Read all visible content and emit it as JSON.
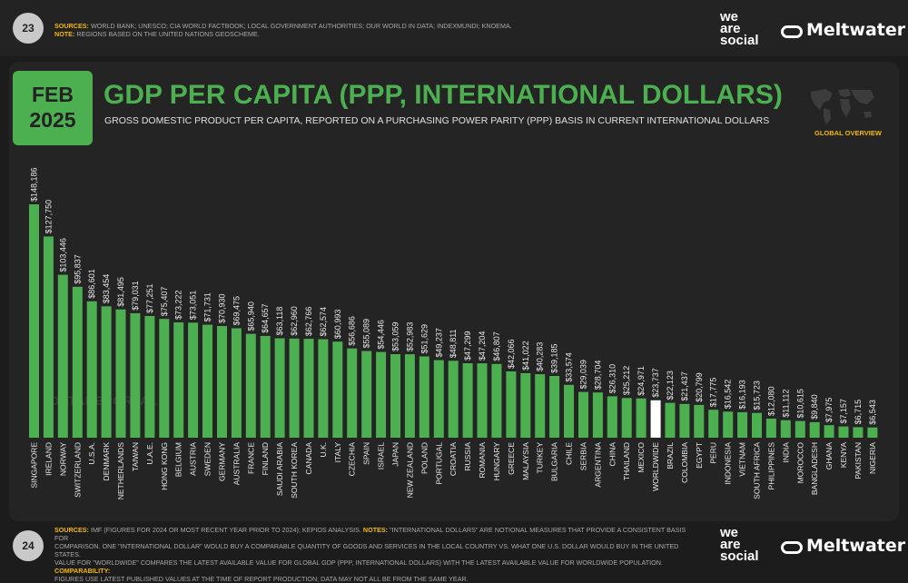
{
  "header": {
    "page_number": "23",
    "sources_label": "SOURCES:",
    "sources_text": "WORLD BANK; UNESCO; CIA WORLD FACTBOOK; LOCAL GOVERNMENT AUTHORITIES; OUR WORLD IN DATA; INDEXMUNDI; KNOEMA.",
    "note_label": "NOTE:",
    "note_text": "REGIONS BASED ON THE UNITED NATIONS GEOSCHEME.",
    "brand_line1": "we",
    "brand_line2": "are",
    "brand_line3": "social",
    "partner": "Meltwater"
  },
  "slide": {
    "date_month": "FEB",
    "date_year": "2025",
    "title": "GDP PER CAPITA (PPP, INTERNATIONAL DOLLARS)",
    "subtitle": "GROSS DOMESTIC PRODUCT PER CAPITA, REPORTED ON A PURCHASING POWER PARITY (PPP) BASIS IN CURRENT INTERNATIONAL DOLLARS",
    "badge": "GLOBAL OVERVIEW",
    "watermark": "DATAREPORTAL"
  },
  "footer": {
    "page_number": "24",
    "sources_label": "SOURCES:",
    "sources_text": "IMF (FIGURES FOR 2024 OR MOST RECENT YEAR PRIOR TO 2024); KEPIOS ANALYSIS.",
    "notes_label": "NOTES:",
    "notes_line1": "\"INTERNATIONAL DOLLARS\" ARE NOTIONAL MEASURES THAT PROVIDE A CONSISTENT BASIS FOR",
    "notes_line2": "COMPARISON. ONE \"INTERNATIONAL DOLLAR\" WOULD BUY A COMPARABLE QUANTITY OF GOODS AND SERVICES IN THE LOCAL COUNTRY vs. WHAT ONE U.S. DOLLAR WOULD BUY IN THE UNITED STATES.",
    "notes_line3": "VALUE FOR \"WORLDWIDE\" COMPARES THE LATEST AVAILABLE VALUE FOR GLOBAL GDP (PPP, INTERNATIONAL DOLLARS) WITH THE LATEST AVAILABLE VALUE FOR WORLDWIDE POPULATION.",
    "comparability_label": "COMPARABILITY:",
    "notes_line4": "FIGURES USE LATEST PUBLISHED VALUES AT THE TIME OF REPORT PRODUCTION; DATA MAY NOT ALL BE FROM THE SAME YEAR.",
    "brand_line1": "we",
    "brand_line2": "are",
    "brand_line3": "social",
    "partner": "Meltwater"
  },
  "colors": {
    "bar": "#4caf50",
    "highlight": "#ffffff",
    "accent": "#f5b800",
    "label": "#e8e8e8"
  },
  "chart_data": {
    "type": "bar",
    "highlight_category": "WORLDWIDE",
    "categories": [
      "SINGAPORE",
      "IRELAND",
      "NORWAY",
      "SWITZERLAND",
      "U.S.A.",
      "DENMARK",
      "NETHERLANDS",
      "TAIWAN",
      "U.A.E.",
      "HONG KONG",
      "BELGIUM",
      "AUSTRIA",
      "SWEDEN",
      "GERMANY",
      "AUSTRALIA",
      "FRANCE",
      "FINLAND",
      "SAUDI ARABIA",
      "SOUTH KOREA",
      "CANADA",
      "U.K.",
      "ITALY",
      "CZECHIA",
      "SPAIN",
      "ISRAEL",
      "JAPAN",
      "NEW ZEALAND",
      "POLAND",
      "PORTUGAL",
      "CROATIA",
      "RUSSIA",
      "ROMANIA",
      "HUNGARY",
      "GREECE",
      "MALAYSIA",
      "TURKEY",
      "BULGARIA",
      "CHILE",
      "SERBIA",
      "ARGENTINA",
      "CHINA",
      "THAILAND",
      "MEXICO",
      "WORLDWIDE",
      "BRAZIL",
      "COLOMBIA",
      "EGYPT",
      "PERU",
      "INDONESIA",
      "VIETNAM",
      "SOUTH AFRICA",
      "PHILIPPINES",
      "INDIA",
      "MOROCCO",
      "BANGLADESH",
      "GHANA",
      "KENYA",
      "PAKISTAN",
      "NIGERIA"
    ],
    "values": [
      148186,
      127750,
      103446,
      95837,
      86601,
      83454,
      81495,
      79031,
      77251,
      75407,
      73222,
      73051,
      71731,
      70930,
      69475,
      65940,
      64657,
      63118,
      62960,
      62766,
      62574,
      60993,
      56686,
      55089,
      54446,
      53059,
      52983,
      51629,
      49237,
      48811,
      47299,
      47204,
      46807,
      42066,
      41022,
      40283,
      39185,
      33574,
      29039,
      28704,
      26310,
      25212,
      24971,
      23737,
      22123,
      21437,
      20799,
      17775,
      16542,
      16193,
      15723,
      12080,
      11112,
      10615,
      9840,
      7975,
      7157,
      6715,
      6543
    ],
    "value_labels": [
      "$148,186",
      "$127,750",
      "$103,446",
      "$95,837",
      "$86,601",
      "$83,454",
      "$81,495",
      "$79,031",
      "$77,251",
      "$75,407",
      "$73,222",
      "$73,051",
      "$71,731",
      "$70,930",
      "$69,475",
      "$65,940",
      "$64,657",
      "$63,118",
      "$62,960",
      "$62,766",
      "$62,574",
      "$60,993",
      "$56,686",
      "$55,089",
      "$54,446",
      "$53,059",
      "$52,983",
      "$51,629",
      "$49,237",
      "$48,811",
      "$47,299",
      "$47,204",
      "$46,807",
      "$42,066",
      "$41,022",
      "$40,283",
      "$39,185",
      "$33,574",
      "$29,039",
      "$28,704",
      "$26,310",
      "$25,212",
      "$24,971",
      "$23,737",
      "$22,123",
      "$21,437",
      "$20,799",
      "$17,775",
      "$16,542",
      "$16,193",
      "$15,723",
      "$12,080",
      "$11,112",
      "$10,615",
      "$9,840",
      "$7,975",
      "$7,157",
      "$6,715",
      "$6,543"
    ],
    "ylim": [
      0,
      148186
    ],
    "grid": false,
    "legend": "none"
  }
}
